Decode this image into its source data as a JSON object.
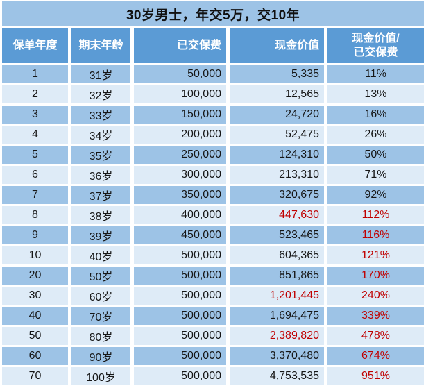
{
  "title": "30岁男士，年交5万，交10年",
  "table": {
    "headers": [
      "保单年度",
      "期末年龄",
      "已交保费",
      "现金价值",
      "现金价值/\n已交保费"
    ],
    "header_keys": [
      "policy-year",
      "age-at-end",
      "premium-paid",
      "cash-value",
      "cash-value-to-premium-ratio"
    ],
    "rows": [
      {
        "year": "1",
        "age": "31岁",
        "premium": "50,000",
        "cash_value": "5,335",
        "ratio": "11%",
        "cash_red": false,
        "ratio_red": false
      },
      {
        "year": "2",
        "age": "32岁",
        "premium": "100,000",
        "cash_value": "12,565",
        "ratio": "13%",
        "cash_red": false,
        "ratio_red": false
      },
      {
        "year": "3",
        "age": "33岁",
        "premium": "150,000",
        "cash_value": "24,720",
        "ratio": "16%",
        "cash_red": false,
        "ratio_red": false
      },
      {
        "year": "4",
        "age": "34岁",
        "premium": "200,000",
        "cash_value": "52,475",
        "ratio": "26%",
        "cash_red": false,
        "ratio_red": false
      },
      {
        "year": "5",
        "age": "35岁",
        "premium": "250,000",
        "cash_value": "124,310",
        "ratio": "50%",
        "cash_red": false,
        "ratio_red": false
      },
      {
        "year": "6",
        "age": "36岁",
        "premium": "300,000",
        "cash_value": "213,310",
        "ratio": "71%",
        "cash_red": false,
        "ratio_red": false
      },
      {
        "year": "7",
        "age": "37岁",
        "premium": "350,000",
        "cash_value": "320,675",
        "ratio": "92%",
        "cash_red": false,
        "ratio_red": false
      },
      {
        "year": "8",
        "age": "38岁",
        "premium": "400,000",
        "cash_value": "447,630",
        "ratio": "112%",
        "cash_red": true,
        "ratio_red": true
      },
      {
        "year": "9",
        "age": "39岁",
        "premium": "450,000",
        "cash_value": "523,465",
        "ratio": "116%",
        "cash_red": false,
        "ratio_red": true
      },
      {
        "year": "10",
        "age": "40岁",
        "premium": "500,000",
        "cash_value": "604,365",
        "ratio": "121%",
        "cash_red": false,
        "ratio_red": true
      },
      {
        "year": "20",
        "age": "50岁",
        "premium": "500,000",
        "cash_value": "851,865",
        "ratio": "170%",
        "cash_red": false,
        "ratio_red": true
      },
      {
        "year": "30",
        "age": "60岁",
        "premium": "500,000",
        "cash_value": "1,201,445",
        "ratio": "240%",
        "cash_red": true,
        "ratio_red": true
      },
      {
        "year": "40",
        "age": "70岁",
        "premium": "500,000",
        "cash_value": "1,694,475",
        "ratio": "339%",
        "cash_red": false,
        "ratio_red": true
      },
      {
        "year": "50",
        "age": "80岁",
        "premium": "500,000",
        "cash_value": "2,389,820",
        "ratio": "478%",
        "cash_red": true,
        "ratio_red": true
      },
      {
        "year": "60",
        "age": "90岁",
        "premium": "500,000",
        "cash_value": "3,370,480",
        "ratio": "674%",
        "cash_red": false,
        "ratio_red": true
      },
      {
        "year": "70",
        "age": "100岁",
        "premium": "500,000",
        "cash_value": "4,753,535",
        "ratio": "951%",
        "cash_red": false,
        "ratio_red": true
      }
    ]
  },
  "colors": {
    "header_bg": "#5b9bd5",
    "row_dark": "#9dc3e6",
    "row_light": "#deebf7",
    "red_text": "#c00000",
    "title_bg": "#9dc3e6",
    "gap_white": "#ffffff"
  },
  "chart_data": {
    "type": "table",
    "title": "30岁男士，年交5万，交10年",
    "columns": [
      "保单年度",
      "期末年龄",
      "已交保费",
      "现金价值",
      "现金价值/已交保费"
    ],
    "rows": [
      [
        1,
        "31岁",
        50000,
        5335,
        "11%"
      ],
      [
        2,
        "32岁",
        100000,
        12565,
        "13%"
      ],
      [
        3,
        "33岁",
        150000,
        24720,
        "16%"
      ],
      [
        4,
        "34岁",
        200000,
        52475,
        "26%"
      ],
      [
        5,
        "35岁",
        250000,
        124310,
        "50%"
      ],
      [
        6,
        "36岁",
        300000,
        213310,
        "71%"
      ],
      [
        7,
        "37岁",
        350000,
        320675,
        "92%"
      ],
      [
        8,
        "38岁",
        400000,
        447630,
        "112%"
      ],
      [
        9,
        "39岁",
        450000,
        523465,
        "116%"
      ],
      [
        10,
        "40岁",
        500000,
        604365,
        "121%"
      ],
      [
        20,
        "50岁",
        500000,
        851865,
        "170%"
      ],
      [
        30,
        "60岁",
        500000,
        1201445,
        "240%"
      ],
      [
        40,
        "70岁",
        500000,
        1694475,
        "339%"
      ],
      [
        50,
        "80岁",
        500000,
        2389820,
        "478%"
      ],
      [
        60,
        "90岁",
        500000,
        3370480,
        "674%"
      ],
      [
        70,
        "100岁",
        500000,
        4753535,
        "951%"
      ]
    ],
    "highlighted_red_cash_values": [
      447630,
      1201445,
      2389820
    ],
    "red_ratio_from_row": "112% onward"
  }
}
